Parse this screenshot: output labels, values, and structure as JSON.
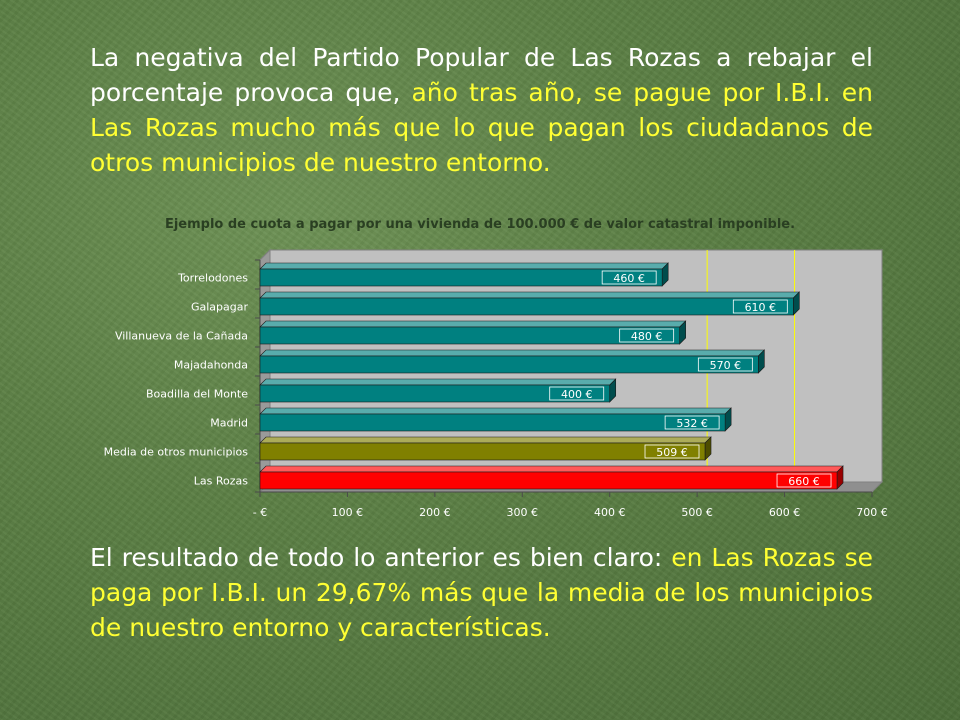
{
  "colors": {
    "text_white": "#ffffff",
    "text_highlight": "#ffff33",
    "plot_bg": "#c0c0c0",
    "bar_teal": "#008080",
    "bar_olive": "#808000",
    "bar_red": "#ff0000",
    "grid": "#ffff00"
  },
  "intro": {
    "part1": "La negativa del Partido Popular de Las Rozas a rebajar el porcentaje provoca que, ",
    "highlight1": "año tras año, se pague por I.B.I. en Las Rozas mucho más  que lo que pagan los ciudadanos de otros municipios de nuestro entorno."
  },
  "conclusion": {
    "part1": "El resultado de todo lo anterior es bien claro: ",
    "highlight1": "en Las Rozas se paga por I.B.I. un 29,67% más que la media de los municipios de nuestro entorno y características."
  },
  "chart_data": {
    "type": "bar",
    "orientation": "horizontal",
    "title": "Ejemplo de cuota a pagar por una vivienda de 100.000 € de valor catastral imponible.",
    "categories": [
      "Torrelodones",
      "Galapagar",
      "Villanueva de la Cañada",
      "Majadahonda",
      "Boadilla del Monte",
      "Madrid",
      "Media de otros municipios",
      "Las Rozas"
    ],
    "values": [
      460,
      610,
      480,
      570,
      400,
      532,
      509,
      660
    ],
    "value_labels": [
      "460 €",
      "610 €",
      "480 €",
      "570 €",
      "400 €",
      "532 €",
      "509 €",
      "660 €"
    ],
    "bar_colors": [
      "#008080",
      "#008080",
      "#008080",
      "#008080",
      "#008080",
      "#008080",
      "#808000",
      "#ff0000"
    ],
    "xlim": [
      0,
      700
    ],
    "xticks": [
      0,
      100,
      200,
      300,
      400,
      500,
      600,
      700
    ],
    "xtick_labels": [
      "- €",
      "100 €",
      "200 €",
      "300 €",
      "400 €",
      "500 €",
      "600 €",
      "700 €"
    ],
    "gridlines": [
      500,
      600
    ],
    "grid": true,
    "style": "3d",
    "legend": "none"
  }
}
